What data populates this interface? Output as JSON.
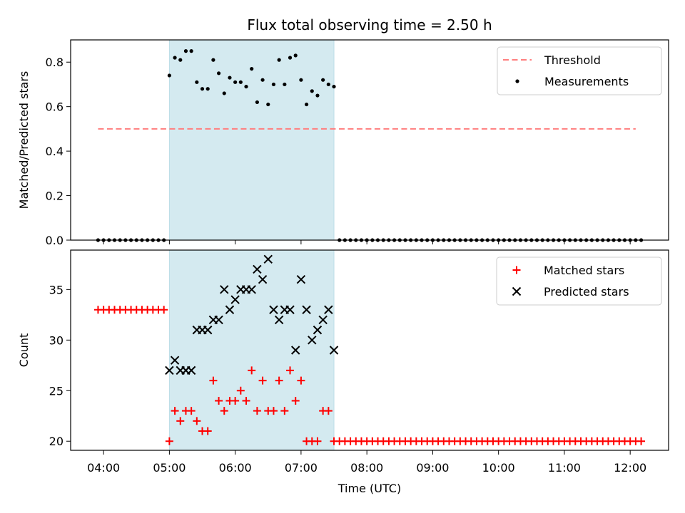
{
  "chart_data": {
    "title": "Flux total observing time = 2.50 h",
    "xlabel": "Time (UTC)",
    "x_tick_labels": [
      "04:00",
      "05:00",
      "06:00",
      "07:00",
      "08:00",
      "09:00",
      "10:00",
      "11:00",
      "12:00"
    ],
    "x_ticks": [
      "04:00",
      "05:00",
      "06:00",
      "07:00",
      "08:00",
      "09:00",
      "10:00",
      "11:00",
      "12:00"
    ],
    "xlim": [
      "03:30",
      "12:35"
    ],
    "shaded_interval": [
      "05:00",
      "07:30"
    ],
    "shade_color": "#d4eaf0",
    "panels": [
      {
        "type": "scatter",
        "ylabel": "Matched/Predicted stars",
        "ylim": [
          0,
          0.9
        ],
        "y_ticks": [
          0.0,
          0.2,
          0.4,
          0.6,
          0.8
        ],
        "y_tick_labels": [
          "0.0",
          "0.2",
          "0.4",
          "0.6",
          "0.8"
        ],
        "legend_position": "top-right",
        "series": [
          {
            "name": "Threshold",
            "kind": "dashed-line",
            "color": "#ff7f7f",
            "x": [
              "03:55",
              "12:05"
            ],
            "y": [
              0.5,
              0.5
            ]
          },
          {
            "name": "Measurements",
            "kind": "dots",
            "color": "#000000",
            "x": [
              "03:55",
              "04:00",
              "04:05",
              "04:10",
              "04:15",
              "04:20",
              "04:25",
              "04:30",
              "04:35",
              "04:40",
              "04:45",
              "04:50",
              "04:55",
              "05:00",
              "05:05",
              "05:10",
              "05:15",
              "05:20",
              "05:25",
              "05:30",
              "05:35",
              "05:40",
              "05:45",
              "05:50",
              "05:55",
              "06:00",
              "06:05",
              "06:10",
              "06:15",
              "06:20",
              "06:25",
              "06:30",
              "06:35",
              "06:40",
              "06:45",
              "06:50",
              "06:55",
              "07:00",
              "07:05",
              "07:10",
              "07:15",
              "07:20",
              "07:25",
              "07:30",
              "07:35",
              "07:40",
              "07:45",
              "07:50",
              "07:55",
              "08:00",
              "08:05",
              "08:10",
              "08:15",
              "08:20",
              "08:25",
              "08:30",
              "08:35",
              "08:40",
              "08:45",
              "08:50",
              "08:55",
              "09:00",
              "09:05",
              "09:10",
              "09:15",
              "09:20",
              "09:25",
              "09:30",
              "09:35",
              "09:40",
              "09:45",
              "09:50",
              "09:55",
              "10:00",
              "10:05",
              "10:10",
              "10:15",
              "10:20",
              "10:25",
              "10:30",
              "10:35",
              "10:40",
              "10:45",
              "10:50",
              "10:55",
              "11:00",
              "11:05",
              "11:10",
              "11:15",
              "11:20",
              "11:25",
              "11:30",
              "11:35",
              "11:40",
              "11:45",
              "11:50",
              "11:55",
              "12:00",
              "12:05",
              "12:10"
            ],
            "y": [
              0,
              0,
              0,
              0,
              0,
              0,
              0,
              0,
              0,
              0,
              0,
              0,
              0,
              0.74,
              0.82,
              0.81,
              0.85,
              0.85,
              0.71,
              0.68,
              0.68,
              0.81,
              0.75,
              0.66,
              0.73,
              0.71,
              0.71,
              0.69,
              0.77,
              0.62,
              0.72,
              0.61,
              0.7,
              0.81,
              0.7,
              0.82,
              0.83,
              0.72,
              0.61,
              0.67,
              0.65,
              0.72,
              0.7,
              0.69,
              0,
              0,
              0,
              0,
              0,
              0,
              0,
              0,
              0,
              0,
              0,
              0,
              0,
              0,
              0,
              0,
              0,
              0,
              0,
              0,
              0,
              0,
              0,
              0,
              0,
              0,
              0,
              0,
              0,
              0,
              0,
              0,
              0,
              0,
              0,
              0,
              0,
              0,
              0,
              0,
              0,
              0,
              0,
              0,
              0,
              0,
              0,
              0,
              0,
              0,
              0,
              0,
              0,
              0,
              0,
              0
            ]
          }
        ]
      },
      {
        "type": "scatter",
        "ylabel": "Count",
        "ylim": [
          19.1,
          38.9
        ],
        "y_ticks": [
          20,
          25,
          30,
          35
        ],
        "y_tick_labels": [
          "20",
          "25",
          "30",
          "35"
        ],
        "legend_position": "top-right",
        "series": [
          {
            "name": "Matched stars",
            "kind": "plus",
            "color": "#ff0000",
            "x": [
              "03:55",
              "04:00",
              "04:05",
              "04:10",
              "04:15",
              "04:20",
              "04:25",
              "04:30",
              "04:35",
              "04:40",
              "04:45",
              "04:50",
              "04:55",
              "05:00",
              "05:05",
              "05:10",
              "05:15",
              "05:20",
              "05:25",
              "05:30",
              "05:35",
              "05:40",
              "05:45",
              "05:50",
              "05:55",
              "06:00",
              "06:05",
              "06:10",
              "06:15",
              "06:20",
              "06:25",
              "06:30",
              "06:35",
              "06:40",
              "06:45",
              "06:50",
              "06:55",
              "07:00",
              "07:05",
              "07:10",
              "07:15",
              "07:20",
              "07:25",
              "07:30",
              "07:35",
              "07:40",
              "07:45",
              "07:50",
              "07:55",
              "08:00",
              "08:05",
              "08:10",
              "08:15",
              "08:20",
              "08:25",
              "08:30",
              "08:35",
              "08:40",
              "08:45",
              "08:50",
              "08:55",
              "09:00",
              "09:05",
              "09:10",
              "09:15",
              "09:20",
              "09:25",
              "09:30",
              "09:35",
              "09:40",
              "09:45",
              "09:50",
              "09:55",
              "10:00",
              "10:05",
              "10:10",
              "10:15",
              "10:20",
              "10:25",
              "10:30",
              "10:35",
              "10:40",
              "10:45",
              "10:50",
              "10:55",
              "11:00",
              "11:05",
              "11:10",
              "11:15",
              "11:20",
              "11:25",
              "11:30",
              "11:35",
              "11:40",
              "11:45",
              "11:50",
              "11:55",
              "12:00",
              "12:05",
              "12:10"
            ],
            "y": [
              33,
              33,
              33,
              33,
              33,
              33,
              33,
              33,
              33,
              33,
              33,
              33,
              33,
              20,
              23,
              22,
              23,
              23,
              22,
              21,
              21,
              26,
              24,
              23,
              24,
              24,
              25,
              24,
              27,
              23,
              26,
              23,
              23,
              26,
              23,
              27,
              24,
              26,
              20,
              20,
              20,
              23,
              23,
              20,
              20,
              20,
              20,
              20,
              20,
              20,
              20,
              20,
              20,
              20,
              20,
              20,
              20,
              20,
              20,
              20,
              20,
              20,
              20,
              20,
              20,
              20,
              20,
              20,
              20,
              20,
              20,
              20,
              20,
              20,
              20,
              20,
              20,
              20,
              20,
              20,
              20,
              20,
              20,
              20,
              20,
              20,
              20,
              20,
              20,
              20,
              20,
              20,
              20,
              20,
              20,
              20,
              20,
              20,
              20,
              20
            ]
          },
          {
            "name": "Predicted stars",
            "kind": "x",
            "color": "#000000",
            "x": [
              "05:00",
              "05:05",
              "05:10",
              "05:15",
              "05:20",
              "05:25",
              "05:30",
              "05:35",
              "05:40",
              "05:45",
              "05:50",
              "05:55",
              "06:00",
              "06:05",
              "06:10",
              "06:15",
              "06:20",
              "06:25",
              "06:30",
              "06:35",
              "06:40",
              "06:45",
              "06:50",
              "06:55",
              "07:00",
              "07:05",
              "07:10",
              "07:15",
              "07:20",
              "07:25",
              "07:30"
            ],
            "y": [
              27,
              28,
              27,
              27,
              27,
              31,
              31,
              31,
              32,
              32,
              35,
              33,
              34,
              35,
              35,
              35,
              37,
              36,
              38,
              33,
              32,
              33,
              33,
              29,
              36,
              33,
              30,
              31,
              32,
              33,
              29
            ]
          }
        ]
      }
    ]
  }
}
